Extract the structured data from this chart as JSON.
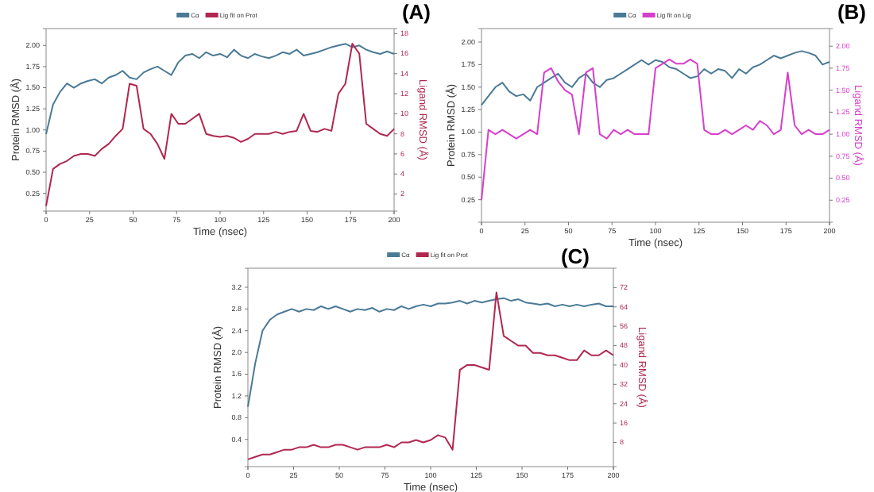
{
  "chart_data": [
    {
      "type": "line",
      "title": "(A)",
      "xlabel": "Time (nsec)",
      "ylabel": "Protein RMSD (Å)",
      "y2label": "Ligand RMSD (Å)",
      "legend": "top",
      "x": [
        0,
        4,
        8,
        12,
        16,
        20,
        24,
        28,
        32,
        36,
        40,
        44,
        48,
        52,
        56,
        60,
        64,
        68,
        72,
        76,
        80,
        84,
        88,
        92,
        96,
        100,
        104,
        108,
        112,
        116,
        120,
        124,
        128,
        132,
        136,
        140,
        144,
        148,
        152,
        156,
        160,
        164,
        168,
        172,
        176,
        180,
        184,
        188,
        192,
        196,
        200
      ],
      "xlim": [
        0,
        200
      ],
      "xticks": [
        0,
        25,
        50,
        75,
        100,
        125,
        150,
        175,
        200
      ],
      "ylim": [
        0.04,
        2.2
      ],
      "yticks": [
        {
          "value": 0.25,
          "label": "0.25"
        },
        {
          "value": 0.5,
          "label": "0.50"
        },
        {
          "value": 0.75,
          "label": "0.75"
        },
        {
          "value": 1,
          "label": "1.00"
        },
        {
          "value": 1.25,
          "label": "1.25"
        },
        {
          "value": 1.5,
          "label": "1.50"
        },
        {
          "value": 1.75,
          "label": "1.75"
        },
        {
          "value": 2,
          "label": "2.00"
        }
      ],
      "y2lim": [
        0.3,
        18.5
      ],
      "y2ticks": [
        2,
        4,
        6,
        8,
        10,
        12,
        14,
        16,
        18
      ],
      "series": [
        {
          "name": "Cα",
          "color": "#4a7a96",
          "axis": "y",
          "values": [
            0.95,
            1.3,
            1.45,
            1.55,
            1.5,
            1.55,
            1.58,
            1.6,
            1.55,
            1.62,
            1.65,
            1.7,
            1.62,
            1.6,
            1.68,
            1.72,
            1.75,
            1.7,
            1.65,
            1.8,
            1.88,
            1.9,
            1.85,
            1.92,
            1.88,
            1.9,
            1.86,
            1.95,
            1.88,
            1.85,
            1.9,
            1.87,
            1.85,
            1.88,
            1.92,
            1.9,
            1.95,
            1.88,
            1.9,
            1.92,
            1.95,
            1.98,
            2.0,
            2.02,
            1.98,
            2.0,
            1.95,
            1.92,
            1.9,
            1.93,
            1.9
          ]
        },
        {
          "name": "Lig fit on Prot",
          "color": "#b0284f",
          "axis": "y2",
          "values": [
            0.8,
            4.5,
            5,
            5.3,
            5.8,
            6,
            6,
            5.8,
            6.5,
            7,
            7.8,
            8.5,
            13,
            12.8,
            8.5,
            8,
            7,
            5.5,
            10,
            9,
            9,
            9.5,
            10,
            8,
            7.8,
            7.7,
            7.8,
            7.6,
            7.2,
            7.5,
            8,
            8,
            8,
            8.2,
            8,
            8.2,
            8.3,
            10,
            8.3,
            8.2,
            8.5,
            8.3,
            12,
            13,
            17,
            16,
            9,
            8.5,
            8,
            7.8,
            8.5
          ]
        }
      ]
    },
    {
      "type": "line",
      "title": "(B)",
      "xlabel": "Time (nsec)",
      "ylabel": "Protein RMSD (Å)",
      "y2label": "Ligand RMSD (Å)",
      "legend": "top",
      "x": [
        0,
        4,
        8,
        12,
        16,
        20,
        24,
        28,
        32,
        36,
        40,
        44,
        48,
        52,
        56,
        60,
        64,
        68,
        72,
        76,
        80,
        84,
        88,
        92,
        96,
        100,
        104,
        108,
        112,
        116,
        120,
        124,
        128,
        132,
        136,
        140,
        144,
        148,
        152,
        156,
        160,
        164,
        168,
        172,
        176,
        180,
        184,
        188,
        192,
        196,
        200
      ],
      "xlim": [
        0,
        200
      ],
      "xticks": [
        0,
        25,
        50,
        75,
        100,
        125,
        150,
        175,
        200
      ],
      "ylim": [
        0,
        2.15
      ],
      "yticks": [
        {
          "value": 0.25,
          "label": "0.25"
        },
        {
          "value": 0.5,
          "label": "0.50"
        },
        {
          "value": 0.75,
          "label": "0.75"
        },
        {
          "value": 1,
          "label": "1.00"
        },
        {
          "value": 1.25,
          "label": "1.25"
        },
        {
          "value": 1.5,
          "label": "1.50"
        },
        {
          "value": 1.75,
          "label": "1.75"
        },
        {
          "value": 2,
          "label": "2.00"
        }
      ],
      "y2lim": [
        0,
        2.2
      ],
      "y2ticks": [
        {
          "value": 0.25,
          "label": "0.25"
        },
        {
          "value": 0.5,
          "label": "0.50"
        },
        {
          "value": 0.75,
          "label": "0.75"
        },
        {
          "value": 1,
          "label": "1.00"
        },
        {
          "value": 1.25,
          "label": "1.25"
        },
        {
          "value": 1.5,
          "label": "1.50"
        },
        {
          "value": 1.75,
          "label": "1.75"
        },
        {
          "value": 2,
          "label": "2.00"
        }
      ],
      "series": [
        {
          "name": "Cα",
          "color": "#4a7a96",
          "axis": "y",
          "values": [
            1.3,
            1.4,
            1.5,
            1.55,
            1.45,
            1.4,
            1.42,
            1.35,
            1.5,
            1.55,
            1.6,
            1.65,
            1.55,
            1.5,
            1.6,
            1.65,
            1.55,
            1.5,
            1.58,
            1.6,
            1.65,
            1.7,
            1.75,
            1.8,
            1.75,
            1.8,
            1.78,
            1.72,
            1.7,
            1.65,
            1.6,
            1.62,
            1.7,
            1.65,
            1.7,
            1.68,
            1.6,
            1.7,
            1.65,
            1.72,
            1.75,
            1.8,
            1.85,
            1.82,
            1.85,
            1.88,
            1.9,
            1.88,
            1.85,
            1.75,
            1.78
          ]
        },
        {
          "name": "Lig fit on Lig",
          "color": "#d63fcb",
          "axis": "y2",
          "values": [
            0.25,
            1.05,
            1.0,
            1.05,
            1.0,
            0.95,
            1.0,
            1.05,
            1.0,
            1.7,
            1.75,
            1.6,
            1.5,
            1.45,
            1.0,
            1.7,
            1.75,
            1.0,
            0.95,
            1.05,
            1.0,
            1.05,
            1.0,
            1.0,
            1.0,
            1.75,
            1.8,
            1.85,
            1.8,
            1.8,
            1.85,
            1.8,
            1.05,
            1.0,
            1.0,
            1.05,
            1.0,
            1.05,
            1.1,
            1.05,
            1.15,
            1.1,
            1.0,
            1.05,
            1.7,
            1.1,
            1.0,
            1.05,
            1.0,
            1.0,
            1.05
          ]
        }
      ]
    },
    {
      "type": "line",
      "title": "(C)",
      "xlabel": "Time (nsec)",
      "ylabel": "Protein RMSD (Å)",
      "y2label": "Ligand RMSD (Å)",
      "legend": "top",
      "x": [
        0,
        4,
        8,
        12,
        16,
        20,
        24,
        28,
        32,
        36,
        40,
        44,
        48,
        52,
        56,
        60,
        64,
        68,
        72,
        76,
        80,
        84,
        88,
        92,
        96,
        100,
        104,
        108,
        112,
        116,
        120,
        124,
        128,
        132,
        136,
        140,
        144,
        148,
        152,
        156,
        160,
        164,
        168,
        172,
        176,
        180,
        184,
        188,
        192,
        196,
        200
      ],
      "xlim": [
        0,
        200
      ],
      "xticks": [
        0,
        25,
        50,
        75,
        100,
        125,
        150,
        175,
        200
      ],
      "ylim": [
        -0.1,
        3.55
      ],
      "yticks": [
        0.4,
        0.8,
        1.2,
        1.6,
        {
          "value": 2,
          "label": "2.0"
        },
        2.4,
        2.8,
        3.2
      ],
      "y2lim": [
        -2,
        80
      ],
      "y2ticks": [
        8,
        16,
        24,
        32,
        40,
        48,
        56,
        64,
        72
      ],
      "series": [
        {
          "name": "Cα",
          "color": "#4a7a96",
          "axis": "y",
          "values": [
            1.0,
            1.8,
            2.4,
            2.6,
            2.7,
            2.75,
            2.8,
            2.75,
            2.8,
            2.78,
            2.85,
            2.8,
            2.85,
            2.8,
            2.75,
            2.8,
            2.78,
            2.82,
            2.75,
            2.8,
            2.78,
            2.85,
            2.8,
            2.85,
            2.88,
            2.85,
            2.9,
            2.9,
            2.92,
            2.95,
            2.9,
            2.95,
            2.92,
            2.95,
            2.98,
            3.0,
            2.95,
            2.98,
            2.92,
            2.9,
            2.88,
            2.9,
            2.85,
            2.88,
            2.85,
            2.88,
            2.85,
            2.88,
            2.9,
            2.85,
            2.85
          ]
        },
        {
          "name": "Lig fit on Prot",
          "color": "#b0284f",
          "axis": "y2",
          "values": [
            1,
            2,
            3,
            3,
            4,
            5,
            5,
            6,
            6,
            7,
            6,
            6,
            7,
            7,
            6,
            5,
            6,
            6,
            6,
            7,
            6,
            8,
            8,
            9,
            8,
            9,
            11,
            10,
            5,
            38,
            40,
            40,
            39,
            38,
            70,
            52,
            50,
            48,
            48,
            45,
            45,
            44,
            44,
            43,
            42,
            42,
            46,
            44,
            44,
            46,
            44
          ]
        }
      ]
    }
  ]
}
